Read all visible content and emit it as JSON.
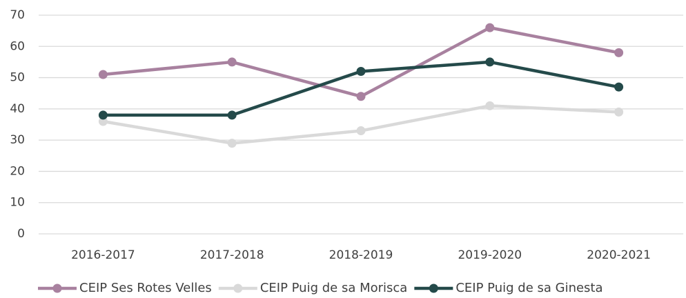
{
  "chart_data": {
    "type": "line",
    "categories": [
      "2016-2017",
      "2017-2018",
      "2018-2019",
      "2019-2020",
      "2020-2021"
    ],
    "series": [
      {
        "name": "CEIP Ses Rotes Velles",
        "color": "#a8819f",
        "values": [
          51,
          55,
          44,
          66,
          58
        ]
      },
      {
        "name": "CEIP Puig de sa Morisca",
        "color": "#d9d9d9",
        "values": [
          36,
          29,
          33,
          41,
          39
        ]
      },
      {
        "name": "CEIP Puig de sa Ginesta",
        "color": "#244a4a",
        "values": [
          38,
          38,
          52,
          55,
          47
        ]
      }
    ],
    "ylim": [
      0,
      70
    ],
    "yticks": [
      0,
      10,
      20,
      30,
      40,
      50,
      60,
      70
    ],
    "grid": true,
    "legend": "bottom"
  }
}
